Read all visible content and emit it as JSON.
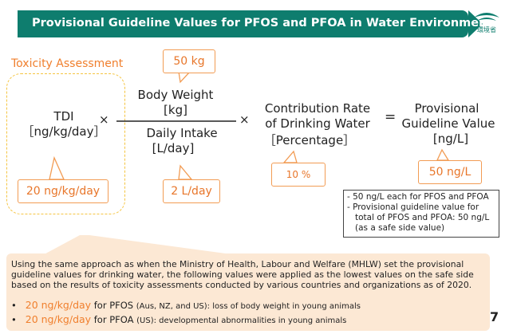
{
  "header": {
    "title": "Provisional Guideline Values for PFOS and PFOA in Water Environment",
    "logo_text": "環境省"
  },
  "toxicity": {
    "label": "Toxicity Assessment",
    "tdi_line1": "TDI",
    "tdi_line2": "［ng/kg/day］",
    "tdi_value": "20 ng/kg/day"
  },
  "operators": {
    "times1": "×",
    "times2": "×",
    "equals": "="
  },
  "fraction": {
    "numerator_line1": "Body Weight",
    "numerator_line2": "[kg]",
    "denominator_line1": "Daily Intake",
    "denominator_line2": "[L/day]",
    "body_weight_value": "50 kg",
    "intake_value": "2 L/day"
  },
  "contribution": {
    "line1": "Contribution Rate",
    "line2": "of Drinking Water",
    "line3": "［Percentage］",
    "value": "10 %"
  },
  "result": {
    "line1": "Provisional",
    "line2": "Guideline Value",
    "line3": "[ng/L]",
    "value": "50 ng/L"
  },
  "footnote": {
    "line1": "- 50 ng/L each for PFOS and PFOA",
    "line2": "- Provisional guideline value for",
    "line3": "total of PFOS and PFOA: 50 ng/L",
    "line4": "(as a safe side value)"
  },
  "explanation": {
    "intro": "Using the same approach as when the Ministry of Health, Labour and Welfare (MHLW) set the provisional guideline values for drinking water, the following values were applied as the lowest values on the safe side based on the results of toxicity assessments conducted by various countries and organizations as of 2020.",
    "bullets": [
      {
        "value": "20 ng/kg/day",
        "for": " for PFOS ",
        "scope": "(Aus, NZ, and US)",
        "effect": ": loss of body weight in young animals"
      },
      {
        "value": "20 ng/kg/day",
        "for": " for PFOA ",
        "scope": "(US)",
        "effect": ": developmental abnormalities in young animals"
      }
    ]
  },
  "page_number": "7",
  "colors": {
    "header_bg": "#0e7d6e",
    "accent": "#f07f2d",
    "callout_border": "#f29c54",
    "info_bg": "#fce8d4",
    "dashed_border": "#f5c542"
  }
}
